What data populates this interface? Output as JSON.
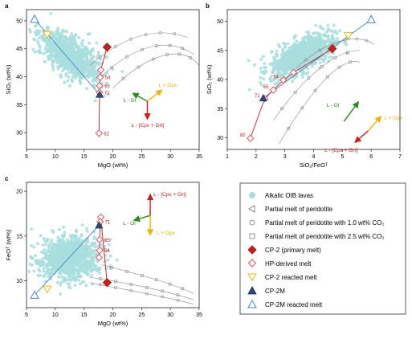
{
  "colors": {
    "oib": "#a9dede",
    "cp2": "#d7191c",
    "hp": "#e8505a",
    "yellow": "#f2b705",
    "navy": "#2c4a7a",
    "blue": "#4a86c8",
    "green": "#2a8a1a",
    "grey": "#8a8a8a",
    "arrow_red": "#d7191c"
  },
  "chart_data": [
    {
      "panel": "a",
      "type": "scatter",
      "xlabel": "MgO (wt%)",
      "ylabel": "SiO₂ (wt%)",
      "xlim": [
        5,
        35
      ],
      "ylim": [
        27,
        52
      ],
      "xticks": [
        5,
        10,
        15,
        20,
        25,
        30,
        35
      ],
      "yticks": [
        30,
        35,
        40,
        45,
        50
      ],
      "cp2_melt": {
        "x": 19.0,
        "y": 45.3
      },
      "hp_melts": [
        {
          "x": 17.9,
          "y": 41.2
        },
        {
          "x": 17.8,
          "y": 39.9,
          "label": "54"
        },
        {
          "x": 17.7,
          "y": 38.4,
          "label": "65"
        },
        {
          "x": 17.7,
          "y": 37.2,
          "label": "71"
        },
        {
          "x": 17.6,
          "y": 29.9,
          "label": "82"
        }
      ],
      "cp2_reacted": {
        "x": 8.6,
        "y": 47.6
      },
      "cp2m": {
        "x": 17.7,
        "y": 36.8
      },
      "cp2m_reacted": {
        "x": 6.4,
        "y": 50.3
      },
      "vectors": {
        "ol": "L - Ol",
        "opx": "L + Opx",
        "cpx": "L - [Cpx + Grt]"
      }
    },
    {
      "panel": "b",
      "type": "scatter",
      "xlabel": "SiO₂/FeOᵀ",
      "ylabel": "SiO₂ (wt%)",
      "xlim": [
        1,
        7
      ],
      "ylim": [
        28,
        52
      ],
      "xticks": [
        1,
        2,
        3,
        4,
        5,
        6,
        7
      ],
      "yticks": [
        30,
        35,
        40,
        45,
        50
      ],
      "cp2_melt": {
        "x": 4.65,
        "y": 45.3
      },
      "hp_melts": [
        {
          "x": 3.3,
          "y": 41.2
        },
        {
          "x": 2.95,
          "y": 39.9,
          "label": "54"
        },
        {
          "x": 2.6,
          "y": 38.2,
          "label": "65"
        },
        {
          "x": 2.3,
          "y": 36.7,
          "label": "71"
        },
        {
          "x": 1.8,
          "y": 29.9,
          "label": "82"
        }
      ],
      "cp2_reacted": {
        "x": 5.2,
        "y": 47.6
      },
      "cp2m": {
        "x": 2.25,
        "y": 36.8
      },
      "cp2m_reacted": {
        "x": 6.0,
        "y": 50.3
      },
      "vectors": {
        "ol": "L - Ol",
        "opx": "L + Opx",
        "cpx": "L - [Cpx + Grt]"
      }
    },
    {
      "panel": "c",
      "type": "scatter",
      "xlabel": "MgO (wt%)",
      "ylabel": "FeOᵀ (wt%)",
      "xlim": [
        5,
        35
      ],
      "ylim": [
        7,
        21
      ],
      "xticks": [
        5,
        10,
        15,
        20,
        25,
        30,
        35
      ],
      "yticks": [
        10,
        15,
        20
      ],
      "cp2_melt": {
        "x": 19.0,
        "y": 9.8
      },
      "hp_melts": [
        {
          "x": 17.9,
          "y": 17.1
        },
        {
          "x": 17.8,
          "y": 16.6,
          "label": "71"
        },
        {
          "x": 17.7,
          "y": 14.6,
          "label": "65"
        },
        {
          "x": 17.7,
          "y": 13.4,
          "label": "54"
        },
        {
          "x": 17.6,
          "y": 12.6
        }
      ],
      "cp2_reacted": {
        "x": 8.6,
        "y": 9.1
      },
      "cp2m": {
        "x": 17.6,
        "y": 16.2
      },
      "cp2m_reacted": {
        "x": 6.4,
        "y": 8.4
      },
      "vectors": {
        "ol": "L - Ol",
        "opx": "L + Opx",
        "cpx": "L - [Cpx + Grt]"
      }
    }
  ],
  "legend": {
    "oib": "Alkalic OIB lavas",
    "pm": "Partial melt of peridotite",
    "pm1": "Partial melt of peridotite with 1.0 wt% CO₂",
    "pm25": "Partial melt of peridotite with 2.5 wt% CO₂",
    "cp2": "CP-2 (primary melt)",
    "hp": "HP-derived melt",
    "cp2r": "CP-2 reacted melt",
    "cp2m": "CP-2M",
    "cp2mr": "CP-2M reacted melt"
  }
}
